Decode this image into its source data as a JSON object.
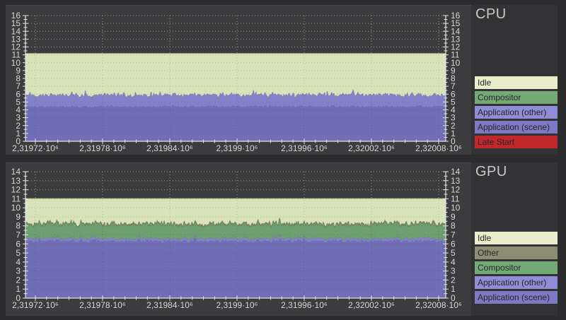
{
  "window": {
    "background": "#2c2c2e",
    "panel_bg": "#3c3c3e",
    "legend_bg": "#333336",
    "axis_color": "#e3e3e3",
    "text_color": "#d6d6d6",
    "title_color": "#c9c9c9"
  },
  "chart_data": [
    {
      "id": "cpu",
      "type": "area",
      "stacked": true,
      "title": "CPU",
      "xlabel": "",
      "ylabel": "",
      "ylim": [
        0,
        16
      ],
      "y_tick_step": 1,
      "x_tick_labels": [
        "2,31972·10⁶",
        "2,31978·10⁶",
        "2,31984·10⁶",
        "2,3199·10⁶",
        "2,31996·10⁶",
        "2,32002·10⁶",
        "2,32008·10⁶"
      ],
      "x_minor_per_major": 6,
      "grid": "dotted",
      "legend_position": "right",
      "frame_budget_total": 11.2,
      "noise_seed": 1337,
      "stack": [
        {
          "name": "Application (scene)",
          "color": "#706fb5",
          "mean": 4.42,
          "noise": 0.15,
          "spike_prob": 0.05,
          "spike_amp": 0.3
        },
        {
          "name": "Application (other)",
          "color": "#8381c8",
          "mean": 1.5,
          "noise": 0.22,
          "spike_prob": 0.1,
          "spike_amp": 0.85
        },
        {
          "name": "Compositor",
          "color": "#6b9f6f",
          "mean": 0.0,
          "noise": 0.0,
          "spike_prob": 0,
          "spike_amp": 0
        },
        {
          "name": "Idle",
          "color": "#d9e3ba",
          "fill_to": 11.2
        },
        {
          "name": "Late Start",
          "color": "#c1272b",
          "mean": 0.0,
          "noise": 0.0,
          "spike_prob": 0,
          "spike_amp": 0
        }
      ],
      "legend": [
        {
          "label": "Idle",
          "color": "#e9edcb"
        },
        {
          "label": "Compositor",
          "color": "#74aa77"
        },
        {
          "label": "Application (other)",
          "color": "#8f8dd6"
        },
        {
          "label": "Application (scene)",
          "color": "#7b7ac3"
        },
        {
          "label": "Late Start",
          "color": "#c1272b"
        }
      ]
    },
    {
      "id": "gpu",
      "type": "area",
      "stacked": true,
      "title": "GPU",
      "xlabel": "",
      "ylabel": "",
      "ylim": [
        0,
        14
      ],
      "y_tick_step": 1,
      "x_tick_labels": [
        "2,31972·10⁶",
        "2,31978·10⁶",
        "2,31984·10⁶",
        "2,3199·10⁶",
        "2,31996·10⁶",
        "2,32002·10⁶",
        "2,32008·10⁶"
      ],
      "x_minor_per_major": 6,
      "grid": "dotted",
      "legend_position": "right",
      "frame_budget_total": 11.05,
      "noise_seed": 4242,
      "stack": [
        {
          "name": "Application (scene)",
          "color": "#706fb5",
          "mean": 6.3,
          "noise": 0.18,
          "spike_prob": 0.07,
          "spike_amp": 0.45
        },
        {
          "name": "Application (other)",
          "color": "#8381c8",
          "mean": 0.3,
          "noise": 0.12,
          "spike_prob": 0.05,
          "spike_amp": 0.2
        },
        {
          "name": "Compositor",
          "color": "#6b9f6f",
          "mean": 1.5,
          "noise": 0.22,
          "spike_prob": 0.1,
          "spike_amp": 0.45
        },
        {
          "name": "Other",
          "color": "#7f8660",
          "mean": 0.18,
          "noise": 0.07,
          "spike_prob": 0.04,
          "spike_amp": 0.15
        },
        {
          "name": "Idle",
          "color": "#d9e3ba",
          "fill_to": 11.05
        }
      ],
      "legend": [
        {
          "label": "Idle",
          "color": "#e9edcb"
        },
        {
          "label": "Other",
          "color": "#8d8d74"
        },
        {
          "label": "Compositor",
          "color": "#74aa77"
        },
        {
          "label": "Application (other)",
          "color": "#8f8dd6"
        },
        {
          "label": "Application (scene)",
          "color": "#7b7ac3"
        }
      ]
    }
  ]
}
